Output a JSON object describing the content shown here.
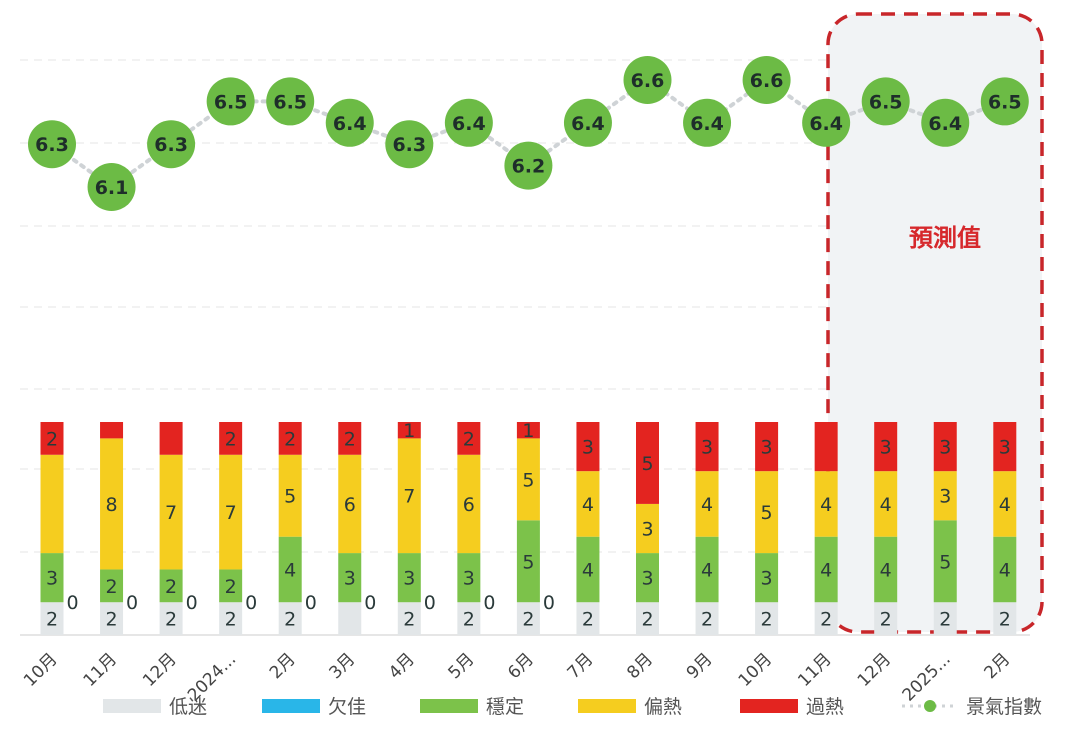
{
  "chart_data": {
    "type": "bar+line",
    "categories": [
      "10月",
      "11月",
      "12月",
      "2024...",
      "2月",
      "3月",
      "4月",
      "5月",
      "6月",
      "7月",
      "8月",
      "9月",
      "10月",
      "11月",
      "12月",
      "2025...",
      "2月"
    ],
    "stack_series": [
      {
        "name": "低迷",
        "color": "#e2e6e8",
        "values": [
          2,
          2,
          2,
          2,
          2,
          2,
          2,
          2,
          2,
          2,
          2,
          2,
          2,
          2,
          2,
          2,
          2
        ],
        "labels_shown": [
          true,
          true,
          true,
          true,
          true,
          false,
          true,
          true,
          true,
          true,
          true,
          true,
          true,
          true,
          true,
          true,
          true
        ]
      },
      {
        "name": "欠佳",
        "color": "#29b6e8",
        "values": [
          0,
          0,
          0,
          0,
          0,
          0,
          0,
          0,
          0,
          0,
          0,
          0,
          0,
          0,
          0,
          0,
          0
        ],
        "labels_shown": [
          true,
          true,
          true,
          true,
          true,
          true,
          true,
          true,
          true,
          false,
          false,
          false,
          false,
          false,
          false,
          false,
          false
        ]
      },
      {
        "name": "穩定",
        "color": "#7cc24a",
        "values": [
          3,
          2,
          2,
          2,
          4,
          3,
          3,
          3,
          5,
          4,
          3,
          4,
          3,
          4,
          4,
          5,
          4
        ],
        "labels_shown": [
          true,
          true,
          true,
          true,
          true,
          true,
          true,
          true,
          true,
          true,
          true,
          true,
          true,
          true,
          true,
          true,
          true
        ]
      },
      {
        "name": "偏熱",
        "color": "#f5cd1f",
        "values": [
          6,
          8,
          7,
          7,
          5,
          6,
          7,
          6,
          5,
          4,
          3,
          4,
          5,
          4,
          4,
          3,
          4
        ],
        "labels_shown": [
          false,
          true,
          true,
          true,
          true,
          true,
          true,
          true,
          true,
          true,
          true,
          true,
          true,
          true,
          true,
          true,
          true
        ]
      },
      {
        "name": "過熱",
        "color": "#e32420",
        "values": [
          2,
          1,
          2,
          2,
          2,
          2,
          1,
          2,
          1,
          3,
          5,
          3,
          3,
          3,
          3,
          3,
          3
        ],
        "labels_shown": [
          true,
          false,
          false,
          true,
          true,
          true,
          true,
          true,
          true,
          true,
          true,
          true,
          true,
          false,
          true,
          true,
          true
        ]
      }
    ],
    "line_series": {
      "name": "景氣指數",
      "color": "#6cbb45",
      "values": [
        6.3,
        6.1,
        6.3,
        6.5,
        6.5,
        6.4,
        6.3,
        6.4,
        6.2,
        6.4,
        6.6,
        6.4,
        6.6,
        6.4,
        6.5,
        6.4,
        6.5
      ]
    },
    "stack_total": 13,
    "forecast_start_index": 14,
    "annotation": "預測值",
    "legend_placement": "bottom",
    "grid": true
  }
}
